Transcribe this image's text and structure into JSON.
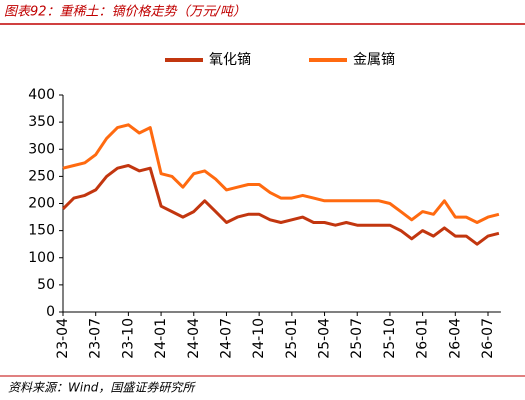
{
  "chart_data": {
    "type": "line",
    "title": "图表92：重稀土：镝价格走势（万元/吨）",
    "source": "资料来源：Wind，国盛证券研究所",
    "categories": [
      "23-04",
      null,
      null,
      "23-07",
      null,
      null,
      "23-10",
      null,
      null,
      "24-01",
      null,
      null,
      "24-04",
      null,
      null,
      "24-07",
      null,
      null,
      "24-10",
      null,
      null,
      "25-01",
      null,
      null,
      "25-04",
      null,
      null,
      "25-07",
      null,
      null,
      "25-10",
      null,
      null,
      "26-01",
      null,
      null,
      "26-04",
      null,
      null,
      "26-07",
      null
    ],
    "series": [
      {
        "name": "氧化镝",
        "color": "#c2360f",
        "values": [
          190,
          210,
          215,
          225,
          250,
          265,
          270,
          260,
          265,
          195,
          185,
          175,
          185,
          205,
          185,
          165,
          175,
          180,
          180,
          170,
          165,
          170,
          175,
          165,
          165,
          160,
          165,
          160,
          160,
          160,
          160,
          150,
          135,
          150,
          140,
          155,
          140,
          140,
          125,
          140,
          145
        ]
      },
      {
        "name": "金属镝",
        "color": "#ff6a10",
        "values": [
          265,
          270,
          275,
          290,
          320,
          340,
          345,
          330,
          340,
          255,
          250,
          230,
          255,
          260,
          245,
          225,
          230,
          235,
          235,
          220,
          210,
          210,
          215,
          210,
          205,
          205,
          205,
          205,
          205,
          205,
          200,
          185,
          170,
          185,
          180,
          205,
          175,
          175,
          165,
          175,
          180
        ]
      }
    ],
    "ylim": [
      0,
      400
    ],
    "yticks": [
      0,
      50,
      100,
      150,
      200,
      250,
      300,
      350,
      400
    ],
    "grid": false
  }
}
